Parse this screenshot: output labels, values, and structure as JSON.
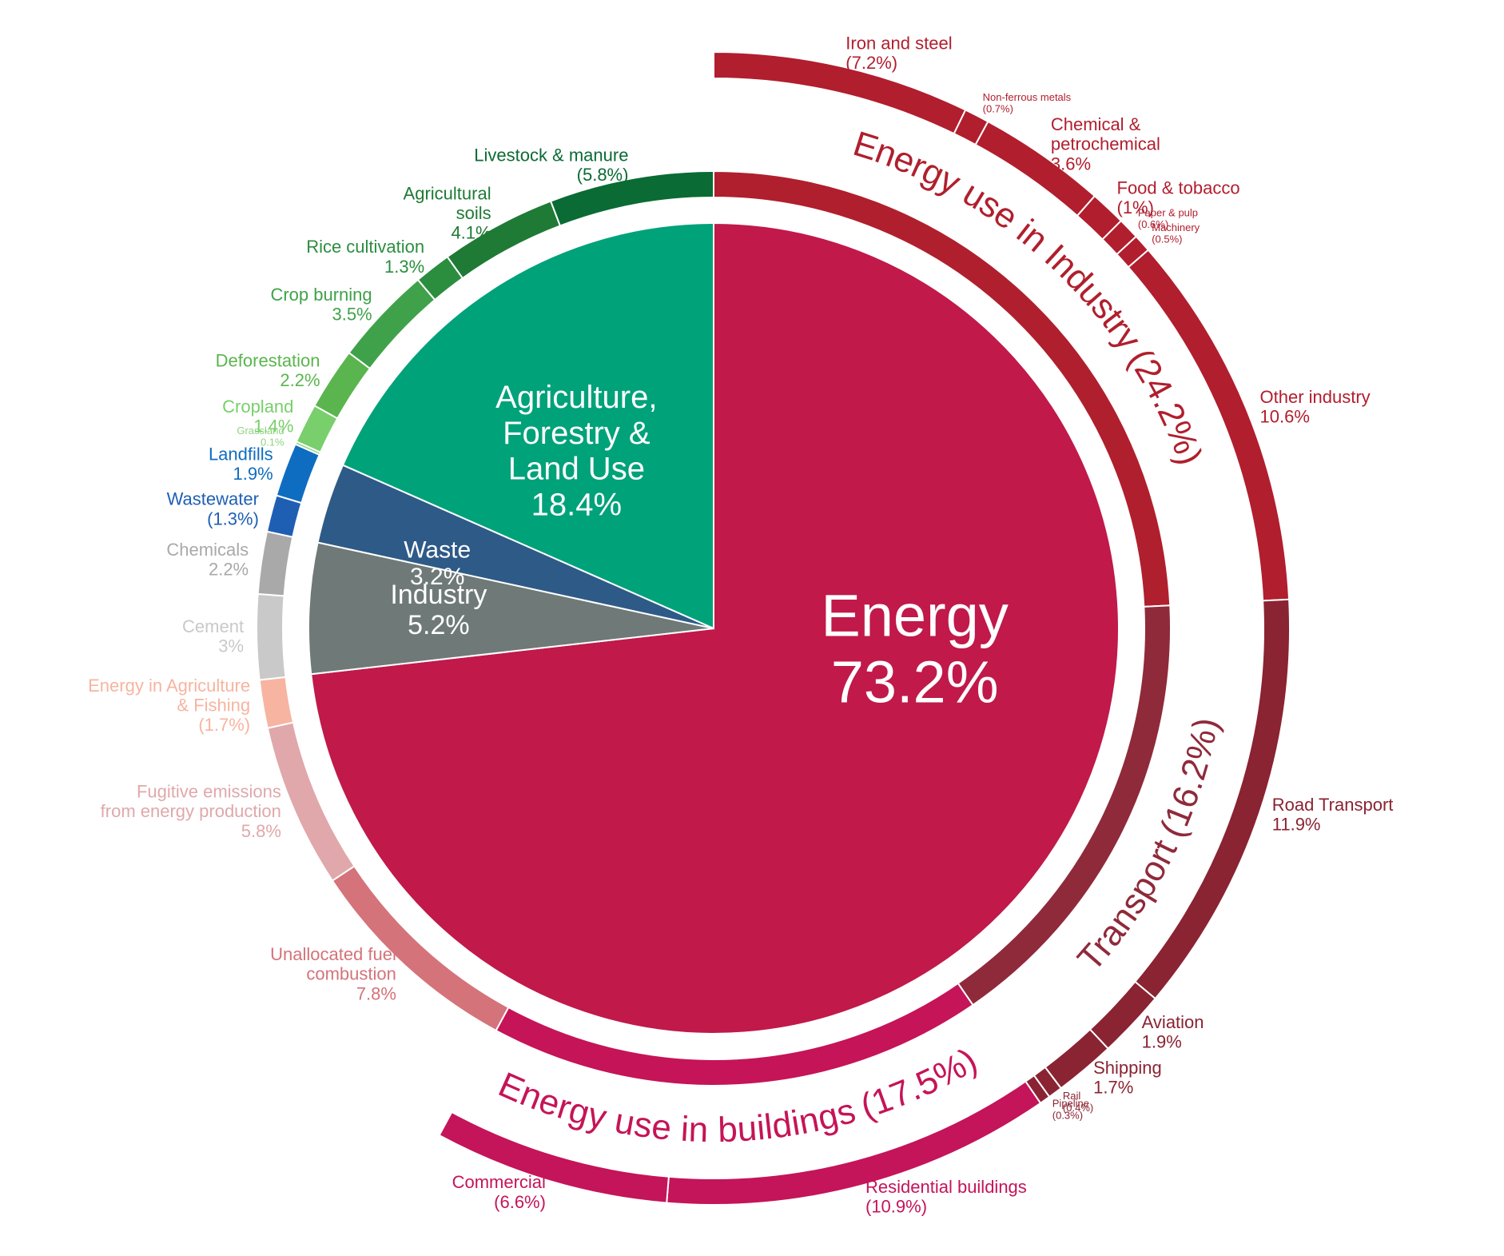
{
  "chart_data": {
    "type": "sunburst",
    "sectors": [
      {
        "name": "Energy",
        "value": 73.2,
        "value_label": "73.2%",
        "color": "#c0194a",
        "children": [
          {
            "name": "Energy use in Industry",
            "value": 24.2,
            "value_label": "(24.2%)",
            "color": "#b01f2d",
            "children": [
              {
                "name": "Iron and steel",
                "value": 7.2,
                "value_label": "(7.2%)",
                "color": "#b11e2e"
              },
              {
                "name": "Non-ferrous metals",
                "value": 0.7,
                "value_label": "(0.7%)",
                "color": "#b11e2e"
              },
              {
                "name": [
                  "Chemical &",
                  "petrochemical"
                ],
                "value": 3.6,
                "value_label": "3.6%",
                "color": "#b11e2e"
              },
              {
                "name": "Food & tobacco",
                "value": 1,
                "value_label": "(1%)",
                "color": "#b11e2e"
              },
              {
                "name": "Paper & pulp",
                "value": 0.6,
                "value_label": "(0.6%)",
                "color": "#b11e2e"
              },
              {
                "name": "Machinery",
                "value": 0.5,
                "value_label": "(0.5%)",
                "color": "#b11e2e"
              },
              {
                "name": "Other industry",
                "value": 10.6,
                "value_label": "10.6%",
                "color": "#b11e2e"
              }
            ]
          },
          {
            "name": "Transport",
            "value": 16.2,
            "value_label": "(16.2%)",
            "color": "#8f2a3a",
            "children": [
              {
                "name": "Road Transport",
                "value": 11.9,
                "value_label": "11.9%",
                "color": "#8a2332"
              },
              {
                "name": "Aviation",
                "value": 1.9,
                "value_label": "1.9%",
                "color": "#8a2332"
              },
              {
                "name": "Shipping",
                "value": 1.7,
                "value_label": "1.7%",
                "color": "#8a2332"
              },
              {
                "name": "Rail",
                "value": 0.4,
                "value_label": "(0.4%)",
                "color": "#8a2332"
              },
              {
                "name": "Pipeline",
                "value": 0.3,
                "value_label": "(0.3%)",
                "color": "#8a2332"
              }
            ]
          },
          {
            "name": "Energy use in buildings",
            "value": 17.5,
            "value_label": "(17.5%)",
            "color": "#c51457",
            "children": [
              {
                "name": "Residential buildings",
                "value": 10.9,
                "value_label": "(10.9%)",
                "color": "#c4145a"
              },
              {
                "name": "Commercial",
                "value": 6.6,
                "value_label": "(6.6%)",
                "color": "#c4145a"
              }
            ]
          },
          {
            "name": [
              "Unallocated fuel",
              "combustion"
            ],
            "value": 7.8,
            "value_label": "7.8%",
            "color": "#d4737a"
          },
          {
            "name": [
              "Fugitive emissions",
              "from energy production"
            ],
            "value": 5.8,
            "value_label": "5.8%",
            "color": "#e0a8aa"
          },
          {
            "name": [
              "Energy in Agriculture",
              "& Fishing"
            ],
            "value": 1.7,
            "value_label": "(1.7%)",
            "color": "#f7b4a0"
          }
        ]
      },
      {
        "name": "Industry",
        "value": 5.2,
        "value_label": "5.2%",
        "color": "#6f7a78",
        "children": [
          {
            "name": "Cement",
            "value": 3,
            "value_label": "3%",
            "color": "#c9c9c9"
          },
          {
            "name": "Chemicals",
            "value": 2.2,
            "value_label": "2.2%",
            "color": "#a9a9a9"
          }
        ]
      },
      {
        "name": "Waste",
        "value": 3.2,
        "value_label": "3.2%",
        "color": "#2e5a87",
        "children": [
          {
            "name": "Wastewater",
            "value": 1.3,
            "value_label": "(1.3%)",
            "color": "#1f5fb3"
          },
          {
            "name": "Landfills",
            "value": 1.9,
            "value_label": "1.9%",
            "color": "#0f6dc1"
          }
        ]
      },
      {
        "name": [
          "Agriculture,",
          "Forestry &",
          "Land Use"
        ],
        "value": 18.4,
        "value_label": "18.4%",
        "color": "#00a27a",
        "children": [
          {
            "name": "Grassland",
            "value": 0.1,
            "value_label": "0.1%",
            "color": "#8fd580"
          },
          {
            "name": "Cropland",
            "value": 1.4,
            "value_label": "1.4%",
            "color": "#78cf6b"
          },
          {
            "name": "Deforestation",
            "value": 2.2,
            "value_label": "2.2%",
            "color": "#5ab54e"
          },
          {
            "name": "Crop burning",
            "value": 3.5,
            "value_label": "3.5%",
            "color": "#3fa24a"
          },
          {
            "name": "Rice cultivation",
            "value": 1.3,
            "value_label": "1.3%",
            "color": "#2b8e3e"
          },
          {
            "name": [
              "Agricultural",
              "soils"
            ],
            "value": 4.1,
            "value_label": "4.1%",
            "color": "#1e7a35"
          },
          {
            "name": "Livestock & manure",
            "value": 5.8,
            "value_label": "(5.8%)",
            "color": "#0a6b34"
          }
        ]
      }
    ]
  }
}
